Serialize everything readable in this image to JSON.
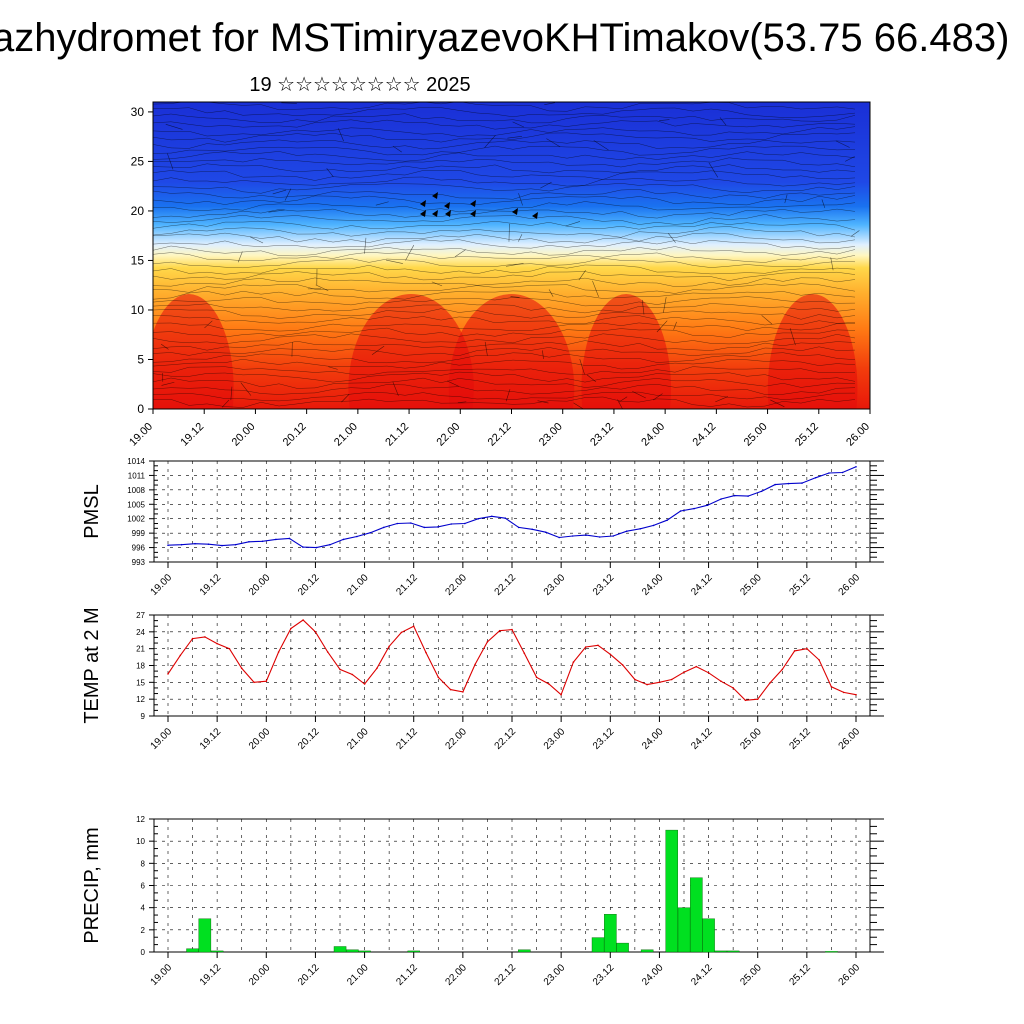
{
  "title": "azhydromet for MSTimiryazevoKHTimakov(53.75 66.483)",
  "subtitle": "19 ☆☆☆☆☆☆☆☆ 2025",
  "chart_data": [
    {
      "type": "heatmap",
      "description": "Vertical cross-section with streamline/wind-barb overlay",
      "x_tick_labels": [
        "19.00",
        "19.12",
        "20.00",
        "20.12",
        "21.00",
        "21.12",
        "22.00",
        "22.12",
        "23.00",
        "23.12",
        "24.00",
        "24.12",
        "25.00",
        "25.12",
        "26.00"
      ],
      "y_ticks": [
        0,
        5,
        10,
        15,
        20,
        25,
        30
      ],
      "ylim": [
        0,
        31
      ],
      "colors": {
        "low": "#e8180a",
        "mid": "#ffd84a",
        "transition": "#ffffff",
        "high": "#1a2fd6"
      }
    },
    {
      "type": "line",
      "ylabel": "PMSL",
      "ylim": [
        993,
        1014
      ],
      "y_ticks": [
        993,
        996,
        999,
        1002,
        1005,
        1008,
        1011,
        1014
      ],
      "x_tick_labels": [
        "19.00",
        "19.12",
        "20.00",
        "20.12",
        "21.00",
        "21.12",
        "22.00",
        "22.12",
        "23.00",
        "23.12",
        "24.00",
        "24.12",
        "25.00",
        "25.12",
        "26.00"
      ],
      "color": "#0000cc",
      "values": [
        996.5,
        996.6,
        996.8,
        996.7,
        996.4,
        996.6,
        997.2,
        997.3,
        997.7,
        997.9,
        996.1,
        996.0,
        996.6,
        997.7,
        998.3,
        999.1,
        1000.2,
        1001.0,
        1001.1,
        1000.2,
        1000.3,
        1000.9,
        1001.0,
        1002.0,
        1002.5,
        1002.1,
        1000.2,
        999.8,
        999.2,
        998.1,
        998.4,
        998.6,
        998.2,
        998.4,
        999.4,
        999.9,
        1000.6,
        1001.7,
        1003.6,
        1004.1,
        1004.8,
        1006.1,
        1006.8,
        1006.7,
        1007.7,
        1009.1,
        1009.3,
        1009.4,
        1010.5,
        1011.5,
        1011.6,
        1012.8
      ]
    },
    {
      "type": "line",
      "ylabel": "TEMP at 2 M",
      "ylim": [
        9,
        27
      ],
      "y_ticks": [
        9,
        12,
        15,
        18,
        21,
        24,
        27
      ],
      "x_tick_labels": [
        "19.00",
        "19.12",
        "20.00",
        "20.12",
        "21.00",
        "21.12",
        "22.00",
        "22.12",
        "23.00",
        "23.12",
        "24.00",
        "24.12",
        "25.00",
        "25.12",
        "26.00"
      ],
      "color": "#dd0000",
      "values": [
        16.5,
        19.8,
        22.8,
        23.1,
        21.9,
        21.0,
        17.5,
        15.0,
        15.2,
        20.4,
        24.6,
        26.1,
        24.0,
        20.4,
        17.3,
        16.4,
        14.7,
        17.5,
        21.4,
        23.9,
        25.0,
        20.3,
        15.9,
        13.7,
        13.3,
        18.2,
        22.2,
        24.2,
        24.4,
        20.2,
        15.9,
        14.7,
        12.8,
        18.6,
        21.3,
        21.6,
        20.0,
        18.1,
        15.5,
        14.6,
        15.0,
        15.5,
        16.8,
        17.8,
        16.7,
        15.2,
        14.0,
        11.8,
        12.0,
        14.9,
        17.3,
        20.6,
        21.0,
        19.0,
        14.2,
        13.2,
        12.8
      ]
    },
    {
      "type": "bar",
      "ylabel": "PRECIP, mm",
      "ylim": [
        0,
        12
      ],
      "y_ticks": [
        0,
        2,
        4,
        6,
        8,
        10,
        12
      ],
      "x_tick_labels": [
        "19.00",
        "19.12",
        "20.00",
        "20.12",
        "21.00",
        "21.12",
        "22.00",
        "22.12",
        "23.00",
        "23.12",
        "24.00",
        "24.12",
        "25.00",
        "25.12",
        "26.00"
      ],
      "color": "#00e020",
      "values": [
        0,
        0,
        0.3,
        3.0,
        0.1,
        0,
        0,
        0,
        0,
        0,
        0,
        0,
        0,
        0,
        0.5,
        0.2,
        0.1,
        0,
        0,
        0,
        0.1,
        0,
        0,
        0,
        0,
        0,
        0,
        0,
        0,
        0.2,
        0,
        0,
        0,
        0,
        0,
        1.3,
        3.4,
        0.8,
        0,
        0.2,
        0,
        11.0,
        4.0,
        6.7,
        3.0,
        0.1,
        0.1,
        0,
        0,
        0,
        0,
        0,
        0,
        0,
        0.05,
        0,
        0
      ]
    }
  ]
}
